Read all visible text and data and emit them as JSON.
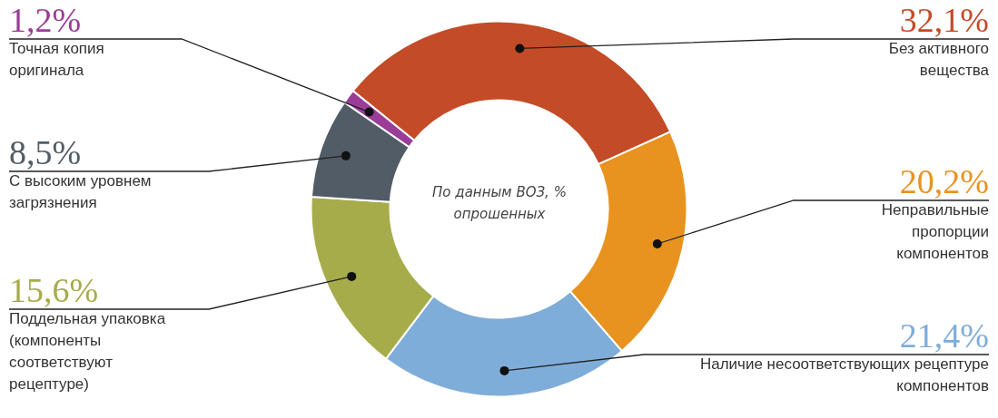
{
  "chart_data": {
    "type": "donut",
    "categories": [
      "Без активного вещества",
      "Неправильные пропорции компонентов",
      "Наличие несоответствующих рецептуре компонентов",
      "Поддельная упаковка (компоненты соответствуют рецептуре)",
      "С высоким уровнем загрязнения",
      "Точная копия оригинала"
    ],
    "values": [
      32.1,
      20.2,
      21.4,
      15.6,
      8.5,
      1.2
    ],
    "value_labels": [
      "32,1%",
      "20,2%",
      "21,4%",
      "15,6%",
      "8,5%",
      "1,2%"
    ],
    "colors": [
      "#c44b27",
      "#e8931f",
      "#7fadd9",
      "#a6ac4a",
      "#525c66",
      "#9b3c97"
    ],
    "annotations": [
      "По данным ВОЗ, % опрошенных"
    ]
  }
}
